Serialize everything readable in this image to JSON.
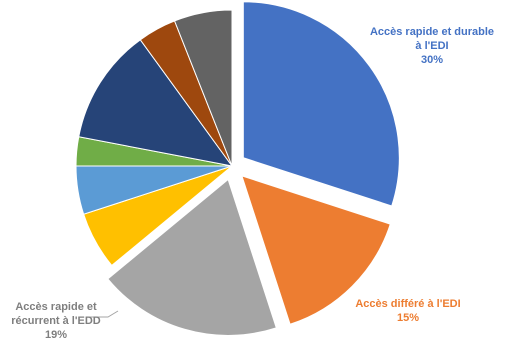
{
  "chart_data": {
    "type": "pie",
    "series": [
      {
        "slices": [
          {
            "label": "Accès rapide et durable à l'EDI",
            "value": 30,
            "value_label": "30%",
            "color": "#4472C4",
            "exploded": true
          },
          {
            "label": "Accès différé à l'EDI",
            "value": 15,
            "value_label": "15%",
            "color": "#ED7D31",
            "exploded": true
          },
          {
            "label": "Accès rapide et récurrent à l'EDD",
            "value": 19,
            "value_label": "19%",
            "color": "#A5A5A5",
            "exploded": true
          },
          {
            "label": "",
            "value": 6,
            "value_label": "",
            "color": "#FFC000",
            "exploded": false
          },
          {
            "label": "",
            "value": 5,
            "value_label": "",
            "color": "#5B9BD5",
            "exploded": false
          },
          {
            "label": "",
            "value": 3,
            "value_label": "",
            "color": "#70AD47",
            "exploded": false
          },
          {
            "label": "",
            "value": 12,
            "value_label": "",
            "color": "#264478",
            "exploded": false
          },
          {
            "label": "",
            "value": 4,
            "value_label": "",
            "color": "#9E480E",
            "exploded": false
          },
          {
            "label": "",
            "value": 6,
            "value_label": "",
            "color": "#636363",
            "exploded": false
          }
        ]
      }
    ],
    "label_lines": {
      "0": [
        "Accès rapide et durable",
        "à l'EDI"
      ],
      "1": [
        "Accès différé à l'EDI"
      ],
      "2": [
        "Accès rapide et",
        "récurrent à l'EDD"
      ]
    },
    "legend": "none",
    "start_angle_deg": 0,
    "direction": "clockwise"
  }
}
